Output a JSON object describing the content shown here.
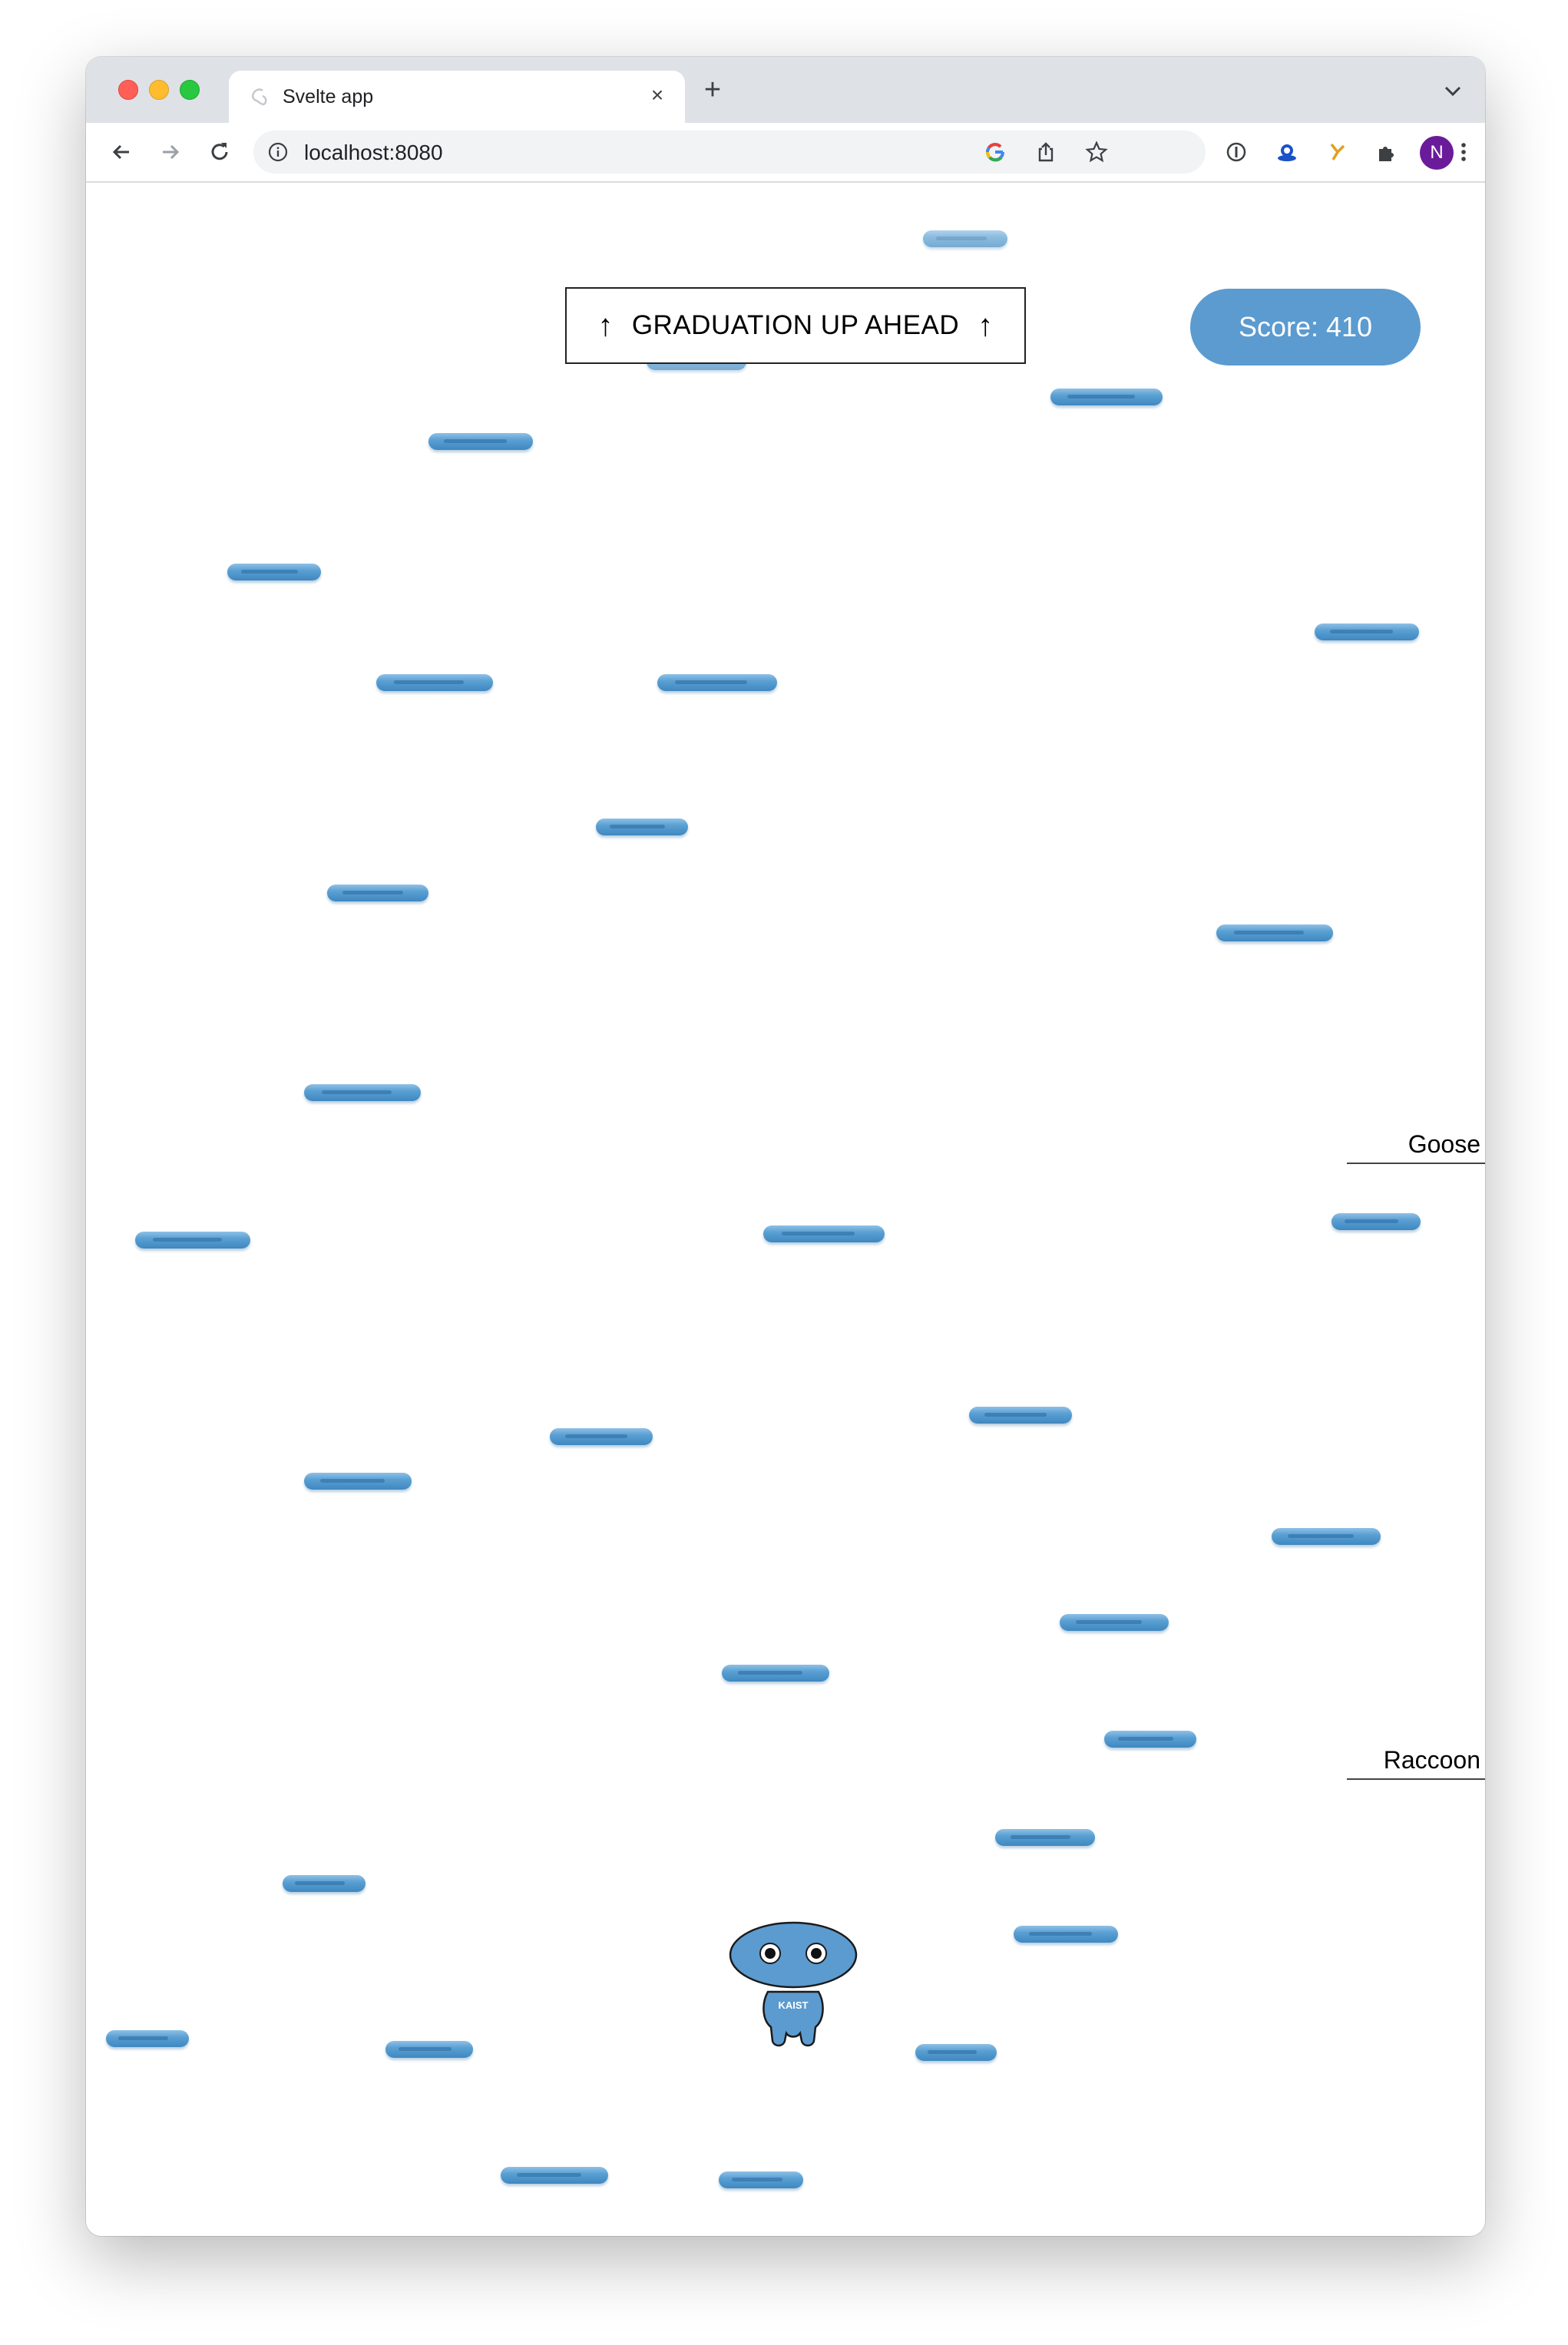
{
  "browser": {
    "tab_title": "Svelte app",
    "url": "localhost:8080",
    "avatar_letter": "N"
  },
  "game": {
    "banner_text": "GRADUATION UP AHEAD",
    "score_label": "Score: 410",
    "side_labels": [
      "Goose",
      "Raccoon"
    ],
    "character_shirt_text": "KAIST"
  },
  "colors": {
    "platform": "#5aa0d3",
    "score_pill": "#5b9bd0",
    "avatar": "#6a1b9a"
  }
}
